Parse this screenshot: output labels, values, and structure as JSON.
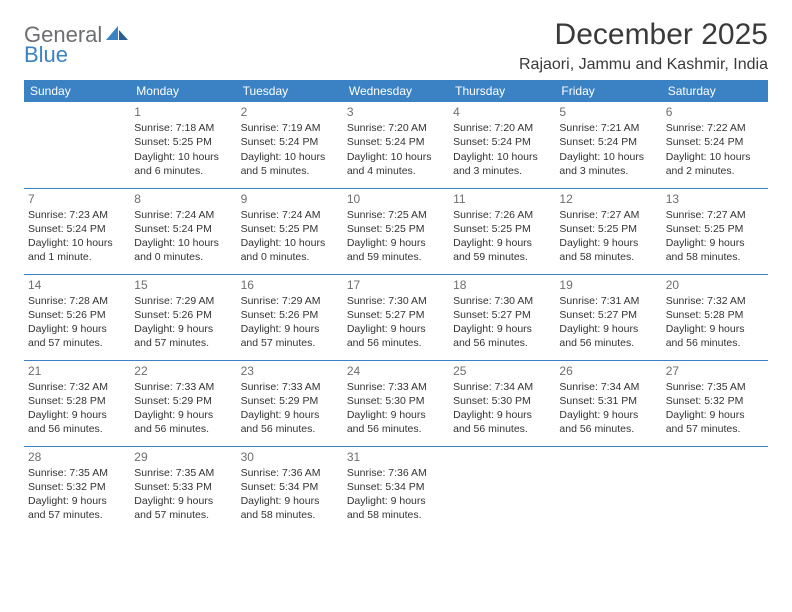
{
  "brand": {
    "name_part1": "General",
    "name_part2": "Blue",
    "text_color": "#6d6e71",
    "accent_color": "#3b82c4"
  },
  "title": "December 2025",
  "location": "Rajaori, Jammu and Kashmir, India",
  "colors": {
    "header_bg": "#3b82c4",
    "header_text": "#ffffff",
    "cell_text": "#333333",
    "daynum_color": "#6d6e71",
    "divider": "#3b82c4",
    "background": "#ffffff"
  },
  "typography": {
    "title_fontsize": 30,
    "location_fontsize": 16,
    "dayheader_fontsize": 12,
    "cell_fontsize": 10.5
  },
  "day_headers": [
    "Sunday",
    "Monday",
    "Tuesday",
    "Wednesday",
    "Thursday",
    "Friday",
    "Saturday"
  ],
  "weeks": [
    [
      {
        "day": "",
        "sunrise": "",
        "sunset": "",
        "daylight": ""
      },
      {
        "day": "1",
        "sunrise": "Sunrise: 7:18 AM",
        "sunset": "Sunset: 5:25 PM",
        "daylight": "Daylight: 10 hours and 6 minutes."
      },
      {
        "day": "2",
        "sunrise": "Sunrise: 7:19 AM",
        "sunset": "Sunset: 5:24 PM",
        "daylight": "Daylight: 10 hours and 5 minutes."
      },
      {
        "day": "3",
        "sunrise": "Sunrise: 7:20 AM",
        "sunset": "Sunset: 5:24 PM",
        "daylight": "Daylight: 10 hours and 4 minutes."
      },
      {
        "day": "4",
        "sunrise": "Sunrise: 7:20 AM",
        "sunset": "Sunset: 5:24 PM",
        "daylight": "Daylight: 10 hours and 3 minutes."
      },
      {
        "day": "5",
        "sunrise": "Sunrise: 7:21 AM",
        "sunset": "Sunset: 5:24 PM",
        "daylight": "Daylight: 10 hours and 3 minutes."
      },
      {
        "day": "6",
        "sunrise": "Sunrise: 7:22 AM",
        "sunset": "Sunset: 5:24 PM",
        "daylight": "Daylight: 10 hours and 2 minutes."
      }
    ],
    [
      {
        "day": "7",
        "sunrise": "Sunrise: 7:23 AM",
        "sunset": "Sunset: 5:24 PM",
        "daylight": "Daylight: 10 hours and 1 minute."
      },
      {
        "day": "8",
        "sunrise": "Sunrise: 7:24 AM",
        "sunset": "Sunset: 5:24 PM",
        "daylight": "Daylight: 10 hours and 0 minutes."
      },
      {
        "day": "9",
        "sunrise": "Sunrise: 7:24 AM",
        "sunset": "Sunset: 5:25 PM",
        "daylight": "Daylight: 10 hours and 0 minutes."
      },
      {
        "day": "10",
        "sunrise": "Sunrise: 7:25 AM",
        "sunset": "Sunset: 5:25 PM",
        "daylight": "Daylight: 9 hours and 59 minutes."
      },
      {
        "day": "11",
        "sunrise": "Sunrise: 7:26 AM",
        "sunset": "Sunset: 5:25 PM",
        "daylight": "Daylight: 9 hours and 59 minutes."
      },
      {
        "day": "12",
        "sunrise": "Sunrise: 7:27 AM",
        "sunset": "Sunset: 5:25 PM",
        "daylight": "Daylight: 9 hours and 58 minutes."
      },
      {
        "day": "13",
        "sunrise": "Sunrise: 7:27 AM",
        "sunset": "Sunset: 5:25 PM",
        "daylight": "Daylight: 9 hours and 58 minutes."
      }
    ],
    [
      {
        "day": "14",
        "sunrise": "Sunrise: 7:28 AM",
        "sunset": "Sunset: 5:26 PM",
        "daylight": "Daylight: 9 hours and 57 minutes."
      },
      {
        "day": "15",
        "sunrise": "Sunrise: 7:29 AM",
        "sunset": "Sunset: 5:26 PM",
        "daylight": "Daylight: 9 hours and 57 minutes."
      },
      {
        "day": "16",
        "sunrise": "Sunrise: 7:29 AM",
        "sunset": "Sunset: 5:26 PM",
        "daylight": "Daylight: 9 hours and 57 minutes."
      },
      {
        "day": "17",
        "sunrise": "Sunrise: 7:30 AM",
        "sunset": "Sunset: 5:27 PM",
        "daylight": "Daylight: 9 hours and 56 minutes."
      },
      {
        "day": "18",
        "sunrise": "Sunrise: 7:30 AM",
        "sunset": "Sunset: 5:27 PM",
        "daylight": "Daylight: 9 hours and 56 minutes."
      },
      {
        "day": "19",
        "sunrise": "Sunrise: 7:31 AM",
        "sunset": "Sunset: 5:27 PM",
        "daylight": "Daylight: 9 hours and 56 minutes."
      },
      {
        "day": "20",
        "sunrise": "Sunrise: 7:32 AM",
        "sunset": "Sunset: 5:28 PM",
        "daylight": "Daylight: 9 hours and 56 minutes."
      }
    ],
    [
      {
        "day": "21",
        "sunrise": "Sunrise: 7:32 AM",
        "sunset": "Sunset: 5:28 PM",
        "daylight": "Daylight: 9 hours and 56 minutes."
      },
      {
        "day": "22",
        "sunrise": "Sunrise: 7:33 AM",
        "sunset": "Sunset: 5:29 PM",
        "daylight": "Daylight: 9 hours and 56 minutes."
      },
      {
        "day": "23",
        "sunrise": "Sunrise: 7:33 AM",
        "sunset": "Sunset: 5:29 PM",
        "daylight": "Daylight: 9 hours and 56 minutes."
      },
      {
        "day": "24",
        "sunrise": "Sunrise: 7:33 AM",
        "sunset": "Sunset: 5:30 PM",
        "daylight": "Daylight: 9 hours and 56 minutes."
      },
      {
        "day": "25",
        "sunrise": "Sunrise: 7:34 AM",
        "sunset": "Sunset: 5:30 PM",
        "daylight": "Daylight: 9 hours and 56 minutes."
      },
      {
        "day": "26",
        "sunrise": "Sunrise: 7:34 AM",
        "sunset": "Sunset: 5:31 PM",
        "daylight": "Daylight: 9 hours and 56 minutes."
      },
      {
        "day": "27",
        "sunrise": "Sunrise: 7:35 AM",
        "sunset": "Sunset: 5:32 PM",
        "daylight": "Daylight: 9 hours and 57 minutes."
      }
    ],
    [
      {
        "day": "28",
        "sunrise": "Sunrise: 7:35 AM",
        "sunset": "Sunset: 5:32 PM",
        "daylight": "Daylight: 9 hours and 57 minutes."
      },
      {
        "day": "29",
        "sunrise": "Sunrise: 7:35 AM",
        "sunset": "Sunset: 5:33 PM",
        "daylight": "Daylight: 9 hours and 57 minutes."
      },
      {
        "day": "30",
        "sunrise": "Sunrise: 7:36 AM",
        "sunset": "Sunset: 5:34 PM",
        "daylight": "Daylight: 9 hours and 58 minutes."
      },
      {
        "day": "31",
        "sunrise": "Sunrise: 7:36 AM",
        "sunset": "Sunset: 5:34 PM",
        "daylight": "Daylight: 9 hours and 58 minutes."
      },
      {
        "day": "",
        "sunrise": "",
        "sunset": "",
        "daylight": ""
      },
      {
        "day": "",
        "sunrise": "",
        "sunset": "",
        "daylight": ""
      },
      {
        "day": "",
        "sunrise": "",
        "sunset": "",
        "daylight": ""
      }
    ]
  ]
}
